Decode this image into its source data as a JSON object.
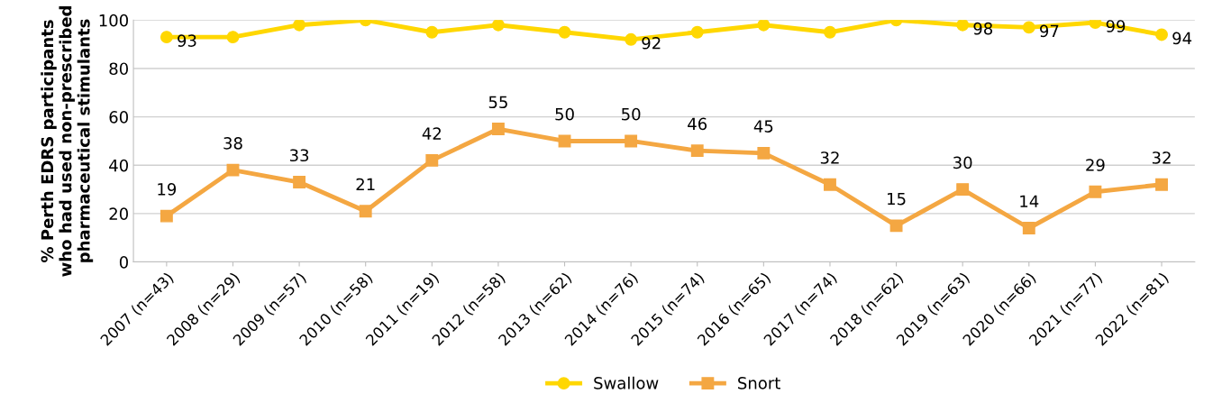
{
  "chart_data": {
    "type": "line",
    "ylabel": "% Perth EDRS participants\nwho had used non-prescribed\npharmaceutical stimulants",
    "categories": [
      "2007 (n=43)",
      "2008 (n=29)",
      "2009 (n=57)",
      "2010 (n=58)",
      "2011 (n=19)",
      "2012 (n=58)",
      "2013 (n=62)",
      "2014 (n=76)",
      "2015 (n=74)",
      "2016 (n=65)",
      "2017 (n=74)",
      "2018 (n=62)",
      "2019 (n=63)",
      "2020 (n=66)",
      "2021 (n=77)",
      "2022 (n=81)"
    ],
    "series": [
      {
        "name": "Swallow",
        "color": "#ffd700",
        "marker": "circle",
        "values": [
          93,
          93,
          98,
          100,
          95,
          98,
          95,
          92,
          95,
          98,
          95,
          100,
          98,
          97,
          99,
          94
        ],
        "value_labels": [
          "93",
          null,
          null,
          null,
          null,
          null,
          null,
          "92",
          null,
          null,
          null,
          null,
          "98",
          "97",
          "99",
          "94"
        ]
      },
      {
        "name": "Snort",
        "color": "#f4a742",
        "marker": "square",
        "values": [
          19,
          38,
          33,
          21,
          42,
          55,
          50,
          50,
          46,
          45,
          32,
          15,
          30,
          14,
          29,
          32
        ],
        "value_labels": [
          "19",
          "38",
          "33",
          "21",
          "42",
          "55",
          "50",
          "50",
          "46",
          "45",
          "32",
          "15",
          "30",
          "14",
          "29",
          "32"
        ]
      }
    ],
    "ylim": [
      0,
      100
    ],
    "yticks": [
      0,
      20,
      40,
      60,
      80,
      100
    ],
    "grid": "y",
    "legend": "bottom",
    "line_style": "solid"
  }
}
